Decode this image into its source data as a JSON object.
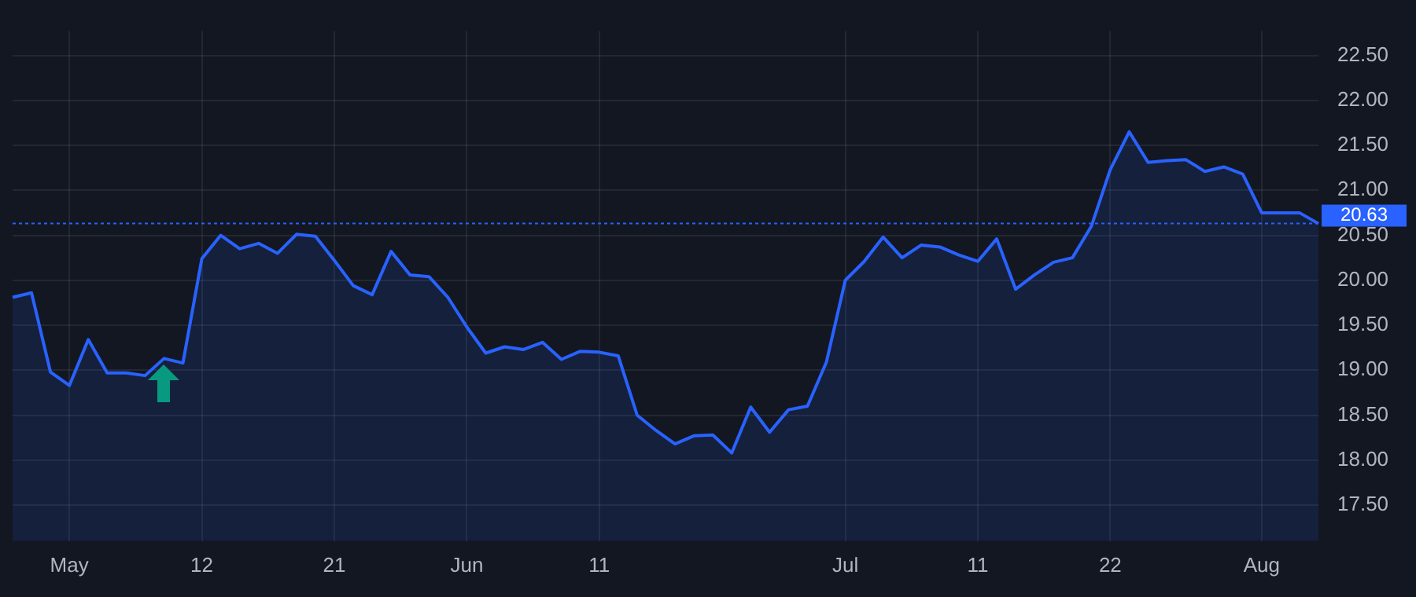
{
  "chart_data": {
    "type": "area",
    "categories": [
      null,
      null,
      null,
      "May",
      null,
      null,
      null,
      null,
      null,
      null,
      "12",
      null,
      null,
      null,
      null,
      null,
      null,
      "21",
      null,
      null,
      null,
      null,
      null,
      null,
      "Jun",
      null,
      null,
      null,
      null,
      null,
      null,
      "11",
      null,
      null,
      null,
      null,
      null,
      null,
      null,
      null,
      null,
      null,
      null,
      null,
      "Jul",
      null,
      null,
      null,
      null,
      null,
      null,
      "11",
      null,
      null,
      null,
      null,
      null,
      null,
      "22",
      null,
      null,
      null,
      null,
      null,
      null,
      null,
      "Aug",
      null,
      null,
      null
    ],
    "series": [
      {
        "color": "#2962ff",
        "values": [
          19.81,
          19.86,
          18.98,
          18.83,
          19.34,
          18.97,
          18.97,
          18.94,
          19.13,
          19.08,
          20.24,
          20.5,
          20.35,
          20.41,
          20.3,
          20.51,
          20.49,
          20.22,
          19.94,
          19.84,
          20.32,
          20.06,
          20.04,
          19.81,
          19.48,
          19.19,
          19.26,
          19.23,
          19.31,
          19.12,
          19.21,
          19.2,
          19.16,
          18.5,
          18.33,
          18.18,
          18.27,
          18.28,
          18.08,
          18.59,
          18.31,
          18.56,
          18.6,
          19.09,
          20.0,
          20.21,
          20.48,
          20.25,
          20.39,
          20.37,
          20.28,
          20.21,
          20.46,
          19.9,
          20.06,
          20.2,
          20.25,
          20.6,
          21.23,
          21.65,
          21.31,
          21.33,
          21.34,
          21.21,
          21.26,
          21.18,
          20.75,
          20.75,
          20.75,
          20.63
        ]
      }
    ],
    "ylim": [
      17.1,
      22.77
    ],
    "yticks": [
      {
        "value": 17.5,
        "label": "17.50"
      },
      {
        "value": 18,
        "label": "18.00"
      },
      {
        "value": 18.5,
        "label": "18.50"
      },
      {
        "value": 19,
        "label": "19.00"
      },
      {
        "value": 19.5,
        "label": "19.50"
      },
      {
        "value": 20,
        "label": "20.00"
      },
      {
        "value": 20.5,
        "label": "20.50"
      },
      {
        "value": 21,
        "label": "21.00"
      },
      {
        "value": 21.5,
        "label": "21.50"
      },
      {
        "value": 22,
        "label": "22.00"
      },
      {
        "value": 22.5,
        "label": "22.50"
      }
    ],
    "ref_lines": [
      {
        "axis": "y",
        "value": 20.63,
        "label": "20.63",
        "color": "#2962ff",
        "line_style": "dotted"
      }
    ],
    "grid": true,
    "legend": false,
    "marker": "none",
    "line_style": "solid"
  }
}
